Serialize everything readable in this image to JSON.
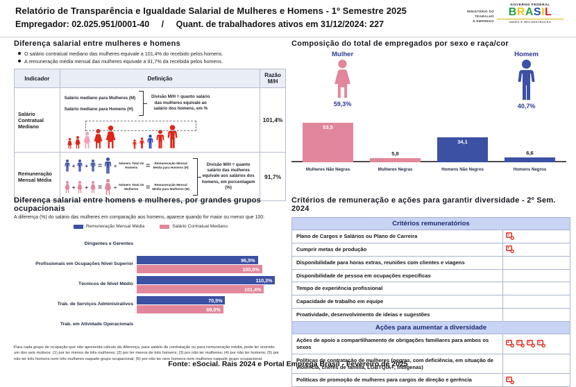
{
  "header": {
    "title": "Relatório de Transparência e Igualdade Salarial de Mulheres e Homens - 1º Semestre 2025",
    "employer": "Empregador: 02.025.951/0001-40",
    "separator": "/",
    "workers": "Quant. de trabalhadores ativos em 31/12/2024: 227",
    "ministry_lines": [
      "MINISTÉRIO DO",
      "TRABALHO",
      "E EMPREGO"
    ],
    "gov_logo": {
      "top": "GOVERNO FEDERAL",
      "name": "BRASIL",
      "bottom": "UNIÃO E RECONSTRUÇÃO"
    }
  },
  "salary_gap_section": {
    "title": "Diferença salarial entre mulheres e homens",
    "bullets": [
      "O salário contratual mediano das mulheres equivale a 101,4% do recebido pelos homens.",
      "A remuneração média mensal das mulheres equivale a 91,7% da recebida pelos homens."
    ],
    "table": {
      "headers": [
        "Indicador",
        "Definição",
        "Razão M/H"
      ],
      "row1": {
        "indicator": "Salário Contratual Mediano",
        "definition_lines": [
          "Salário mediano para Mulheres (M)",
          "Salário mediano para Homens (H)"
        ],
        "definition_note": "Divisão M/H = quanto salário das mulheres equivale ao salário dos homens, em %",
        "ratio": "101,4%"
      },
      "row2": {
        "indicator": "Remuneração Mensal Média",
        "operators": {
          "plus": "+",
          "equals": "=",
          "divide": "÷"
        },
        "men": {
          "total_label": "Número Total de Homens",
          "result_label": "Remuneração Mensal Média para Homens (H)"
        },
        "women": {
          "total_label": "Número Total de Mulheres",
          "result_label": "Remuneração Mensal Média para Mulheres (M)"
        },
        "definition_note": "Divisão M/H = quanto salário das mulheres equivale aos salários dos homens, em porcentagem (%)",
        "ratio": "91,7%"
      }
    }
  },
  "composition_section": {
    "title": "Composição do total de empregados por sexo e raça/cor",
    "female": {
      "label": "Mulher",
      "value": "59,3%"
    },
    "male": {
      "label": "Homem",
      "value": "40,7%"
    }
  },
  "occupational_section": {
    "title": "Diferença salarial entre homens e mulheres, por grandes grupos ocupacionais",
    "subtitle": "A diferença (%) do salário das mulheres em comparação aos homens, aparece quando for maior ou menor que 100:",
    "footnote": "Para cada grupo de ocupação que não apresenta cálculo da diferença, para salário de contratação ou para remuneração média, pode ter ocorrido um dos seis motivos: (1) por ter menos de três mulheres; (2) por ter menos de três homens; (3) por não ter mulheres; (4) por não ter homens; (5) por não ter três homens nem três mulheres naquele grupo ocupacional; (6) por não ter nem homens nem mulheres naquele grupo ocupacional."
  },
  "criteria_section": {
    "title": "Critérios de remuneração e ações para garantir diversidade - 2º Sem. 2024",
    "group1_header": "Critérios remuneratórios",
    "group1_rows": [
      {
        "label": "Plano de Cargos e Salários ou Plano de Carreira",
        "marks": 1
      },
      {
        "label": "Cumprir metas de produção",
        "marks": 1
      },
      {
        "label": "Disponibilidade para horas extras, reuniões com clientes e viagens",
        "marks": 0
      },
      {
        "label": "Disponibilidade de pessoa em ocupações específicas",
        "marks": 0
      },
      {
        "label": "Tempo de experiência profissional",
        "marks": 0
      },
      {
        "label": "Capacidade de trabalho em equipe",
        "marks": 0
      },
      {
        "label": "Proatividade, desenvolvimento de ideias e sugestões",
        "marks": 0
      }
    ],
    "group2_header": "Ações para aumentar a diversidade",
    "group2_rows": [
      {
        "label": "Ações de apoio a compartilhamento de obrigações familiares para ambos os sexos",
        "marks": 4
      },
      {
        "label": "Políticas de contratação de mulheres (negras, com deficiência, em situação de violência, chefes de família, LGBTQIA+, indígenas)",
        "marks": 0
      },
      {
        "label": "Políticas de promoção de mulheres para cargos de direção e gerência",
        "marks": 1
      }
    ]
  },
  "footer": "Fonte: eSocial. Rais 2024 e Portal Emprega Brasil - Fevereiro de 2025",
  "icons": {
    "female": "woman-icon",
    "male": "man-icon",
    "criteria_mark": "red-mark-icon"
  },
  "colors": {
    "female_pink": "#e2879b",
    "male_blue": "#3c50a4",
    "person_red": "#e02417",
    "person_pink_highlight": "#f2a4ba",
    "person_blue_highlight": "#3046c0",
    "navy_text": "#2b3990",
    "mark_red": "#e3261a",
    "criteria_header_bg": "#c9d4f4",
    "brasil_letters": [
      "#1f9c43",
      "#f6c316",
      "#2aa13e",
      "#1b4fa0",
      "#f6c316",
      "#d62222"
    ]
  },
  "chart_data": [
    {
      "type": "bar",
      "title": "Composição do total de empregados por sexo e raça/cor",
      "gender_totals": {
        "Mulher": 59.3,
        "Homem": 40.7
      },
      "categories": [
        "Mulheres Não Negras",
        "Mulheres Negras",
        "Homens Não Negros",
        "Homens Negros"
      ],
      "values": [
        53.5,
        5.8,
        34.1,
        6.6
      ],
      "value_labels": [
        "53,5",
        "5,8",
        "34,1",
        "6,6"
      ],
      "bar_colors": [
        "#e2879b",
        "#e2879b",
        "#3c50a4",
        "#3c50a4"
      ],
      "ylim": [
        0,
        60
      ],
      "grid": false,
      "legend_position": "none"
    },
    {
      "type": "bar",
      "orientation": "horizontal",
      "title": "Diferença salarial entre homens e mulheres, por grandes grupos ocupacionais",
      "categories": [
        "Dirigentes e Gerentes",
        "Profissionais em Ocupações Nível Superior",
        "Técnicos de Nível Médio",
        "Trab. de Serviços Administrativos",
        "Trab. em Atividade Operacionais"
      ],
      "series": [
        {
          "name": "Remuneração Mensal Média",
          "color": "#3c50a4",
          "values": [
            null,
            96.5,
            110.3,
            70.5,
            null
          ],
          "labels": [
            "",
            "96,5%",
            "110,3%",
            "70,5%",
            ""
          ]
        },
        {
          "name": "Salário Contratual Mediano",
          "color": "#e2879b",
          "values": [
            null,
            100.0,
            101.4,
            69.0,
            null
          ],
          "labels": [
            "",
            "100,0%",
            "101,4%",
            "69,0%",
            ""
          ]
        }
      ],
      "xlim": [
        0,
        120
      ],
      "grid": false,
      "legend_position": "top"
    }
  ]
}
